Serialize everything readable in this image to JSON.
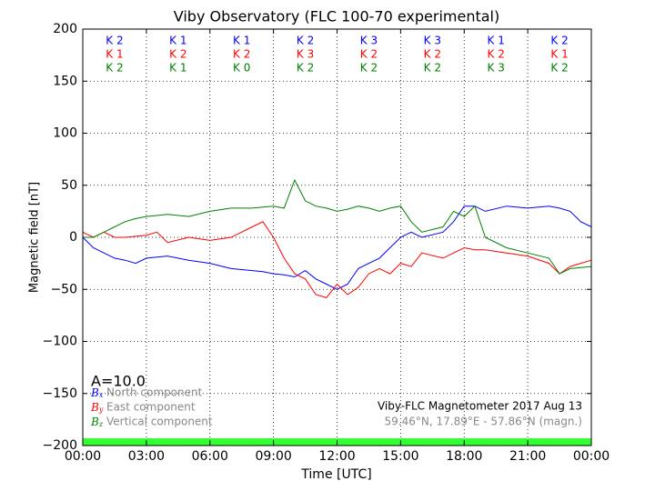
{
  "chart_data": {
    "type": "line",
    "title": "Viby Observatory (FLC 100-70 experimental)",
    "x_label": "Time [UTC]",
    "y_label": "Magnetic field [nT]",
    "xlim": [
      0,
      24
    ],
    "xticks": [
      {
        "value": 0,
        "label": "00:00"
      },
      {
        "value": 3,
        "label": "03:00"
      },
      {
        "value": 6,
        "label": "06:00"
      },
      {
        "value": 9,
        "label": "09:00"
      },
      {
        "value": 12,
        "label": "12:00"
      },
      {
        "value": 15,
        "label": "15:00"
      },
      {
        "value": 18,
        "label": "18:00"
      },
      {
        "value": 21,
        "label": "21:00"
      },
      {
        "value": 24,
        "label": "00:00"
      }
    ],
    "ylim": [
      -200,
      200
    ],
    "yticks": [
      {
        "value": -200,
        "label": "−200"
      },
      {
        "value": -150,
        "label": "−150"
      },
      {
        "value": -100,
        "label": "−100"
      },
      {
        "value": -50,
        "label": "−50"
      },
      0,
      50,
      100,
      150,
      200
    ],
    "grid": true,
    "x": [
      0,
      0.5,
      1,
      1.5,
      2,
      2.5,
      3,
      3.5,
      4,
      5,
      6,
      7,
      8,
      8.5,
      9,
      9.5,
      10,
      10.5,
      11,
      11.5,
      12,
      12.5,
      13,
      13.5,
      14,
      14.5,
      15,
      15.5,
      16,
      17,
      17.5,
      18,
      18.5,
      19,
      20,
      21,
      22,
      22.5,
      23,
      23.5,
      24
    ],
    "series": [
      {
        "name": "North component",
        "symbol": "B",
        "subscript": "x",
        "color": "#0000ff",
        "values": [
          0,
          -10,
          -15,
          -20,
          -22,
          -25,
          -20,
          -19,
          -18,
          -22,
          -25,
          -30,
          -32,
          -33,
          -35,
          -36,
          -38,
          -32,
          -40,
          -45,
          -50,
          -45,
          -30,
          -25,
          -20,
          -10,
          0,
          5,
          0,
          5,
          15,
          30,
          30,
          25,
          30,
          28,
          30,
          28,
          25,
          15,
          10
        ]
      },
      {
        "name": "East component",
        "symbol": "B",
        "subscript": "y",
        "color": "#ff0000",
        "values": [
          5,
          0,
          5,
          0,
          0,
          1,
          2,
          5,
          -5,
          0,
          -3,
          0,
          10,
          15,
          0,
          -20,
          -35,
          -40,
          -55,
          -58,
          -45,
          -55,
          -48,
          -35,
          -30,
          -35,
          -25,
          -28,
          -15,
          -20,
          -15,
          -10,
          -12,
          -12,
          -15,
          -18,
          -25,
          -35,
          -28,
          -25,
          -22
        ]
      },
      {
        "name": "Vertical component",
        "symbol": "B",
        "subscript": "z",
        "color": "#008000",
        "values": [
          0,
          0,
          5,
          10,
          15,
          18,
          20,
          21,
          22,
          20,
          25,
          28,
          28,
          29,
          30,
          28,
          55,
          35,
          30,
          28,
          25,
          27,
          30,
          28,
          25,
          28,
          30,
          15,
          5,
          10,
          25,
          20,
          30,
          0,
          -10,
          -15,
          -20,
          -35,
          -30,
          -29,
          -28
        ]
      }
    ],
    "k_index_rows": [
      {
        "color": "#0000ff",
        "labels": [
          "K 2",
          "K 1",
          "K 1",
          "K 2",
          "K 3",
          "K 3",
          "K 1",
          "K 2"
        ]
      },
      {
        "color": "#ff0000",
        "labels": [
          "K 1",
          "K 2",
          "K 2",
          "K 3",
          "K 2",
          "K 2",
          "K 2",
          "K 1"
        ]
      },
      {
        "color": "#008000",
        "labels": [
          "K 2",
          "K 1",
          "K 0",
          "K 2",
          "K 2",
          "K 2",
          "K 3",
          "K 2"
        ]
      }
    ],
    "amplitude_label": "A=10.0",
    "station_label": "Viby-FLC Magnetometer 2017 Aug 13",
    "location_label": "59.46°N, 17.89°E - 57.86°N (magn.)"
  }
}
